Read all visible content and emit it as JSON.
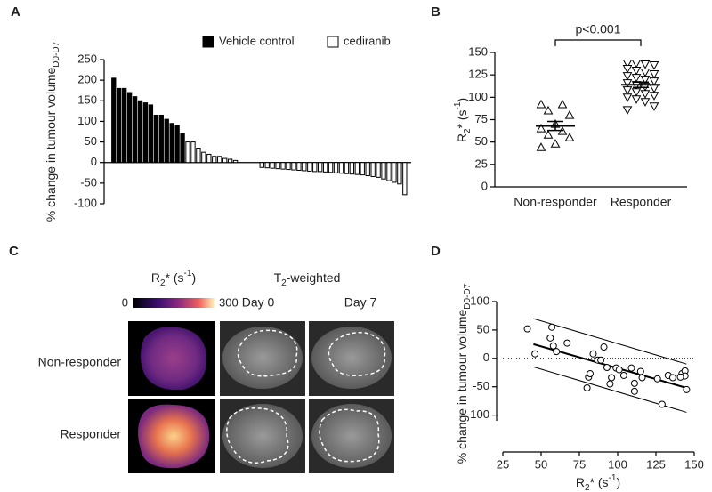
{
  "chart_data": [
    {
      "type": "bar",
      "panel": "A",
      "ylabel": "% change in tumour volume",
      "ylabel_sub": "D0-D7",
      "categories": [
        null,
        null,
        null,
        null,
        null,
        null,
        null,
        null,
        null,
        null,
        null,
        null,
        null,
        null,
        null,
        null,
        null,
        null,
        null,
        null,
        null,
        null,
        null,
        null,
        null,
        null,
        null,
        null,
        null,
        null,
        null,
        null,
        null,
        null,
        null,
        null,
        null,
        null,
        null,
        null,
        null,
        null,
        null,
        null,
        null,
        null,
        null,
        null,
        null,
        null,
        null,
        null,
        null,
        null,
        null,
        null
      ],
      "series": [
        {
          "name": "Vehicle control",
          "color": "#000000",
          "values": [
            205,
            180,
            180,
            170,
            160,
            150,
            145,
            140,
            115,
            115,
            105,
            95,
            90,
            70,
            null,
            null,
            null,
            null,
            null,
            null,
            null,
            null,
            null,
            null,
            null,
            null,
            null,
            null,
            null,
            null,
            null,
            null,
            null,
            null,
            null,
            null,
            null,
            null,
            null,
            null,
            null,
            null,
            null,
            null,
            null,
            null,
            null,
            null,
            null,
            null,
            null,
            null,
            null,
            null,
            null,
            null
          ]
        },
        {
          "name": "cediranib",
          "color": "#ffffff",
          "values": [
            null,
            null,
            null,
            null,
            null,
            null,
            null,
            null,
            null,
            null,
            null,
            null,
            null,
            null,
            50,
            50,
            35,
            25,
            20,
            15,
            15,
            10,
            8,
            5,
            null,
            null,
            null,
            null,
            -12,
            -13,
            -14,
            -15,
            -16,
            -17,
            -18,
            -19,
            -20,
            -21,
            -22,
            -22,
            -23,
            -24,
            -25,
            -26,
            -27,
            -28,
            -29,
            -30,
            -32,
            -34,
            -36,
            -40,
            -44,
            -48,
            -52,
            -78
          ]
        }
      ],
      "ylim": [
        -100,
        250
      ],
      "yticks": [
        -100,
        -50,
        0,
        50,
        100,
        150,
        200,
        250
      ]
    },
    {
      "type": "strip",
      "panel": "B",
      "ylabel": [
        "R",
        "2",
        "* (s",
        "-1",
        ")"
      ],
      "categories": [
        "Non-responder",
        "Responder"
      ],
      "series": [
        {
          "marker": "triangle-up",
          "values": [
            92,
            92,
            85,
            80,
            70,
            65,
            62,
            58,
            55,
            48,
            44
          ]
        },
        {
          "marker": "triangle-down",
          "values": [
            138,
            138,
            137,
            136,
            132,
            130,
            128,
            126,
            124,
            122,
            120,
            118,
            116,
            114,
            112,
            110,
            108,
            106,
            104,
            102,
            100,
            98,
            95,
            90,
            86
          ]
        }
      ],
      "means": [
        68,
        114
      ],
      "sems": [
        5,
        3
      ],
      "annotation": "p<0.001",
      "ylim": [
        0,
        150
      ],
      "yticks": [
        0,
        25,
        50,
        75,
        100,
        125,
        150
      ]
    },
    {
      "type": "scatter",
      "panel": "D",
      "ylabel": "% change in tumour volume",
      "ylabel_sub": "D0-D7",
      "xlabel": [
        "R",
        "2",
        "* (s",
        "-1",
        ")"
      ],
      "x": [
        41,
        46,
        57,
        56,
        58,
        60,
        67,
        81,
        80,
        82,
        84,
        87,
        89,
        91,
        93,
        96,
        95,
        99,
        101,
        104,
        109,
        111,
        111,
        115,
        116,
        126,
        129,
        133,
        136,
        142,
        144,
        144,
        145,
        141
      ],
      "y": [
        52,
        8,
        55,
        36,
        22,
        12,
        27,
        -33,
        -52,
        -27,
        8,
        -3,
        -3,
        20,
        -16,
        -34,
        -45,
        -17,
        -20,
        -30,
        -17,
        -44,
        -58,
        -23,
        -34,
        -36,
        -81,
        -30,
        -34,
        -27,
        -22,
        -31,
        -55,
        -33
      ],
      "lines": [
        {
          "x": [
            45,
            145
          ],
          "y": [
            25,
            -52
          ]
        },
        {
          "x": [
            45,
            145
          ],
          "y": [
            70,
            -10
          ]
        },
        {
          "x": [
            45,
            145
          ],
          "y": [
            -15,
            -95
          ]
        }
      ],
      "zero_line": true,
      "xlim": [
        25,
        150
      ],
      "xticks": [
        25,
        50,
        75,
        100,
        125,
        150
      ],
      "ylim": [
        -110,
        100
      ],
      "yticks": [
        -100,
        -50,
        0,
        50,
        100
      ]
    }
  ],
  "panel_c": {
    "label": "C",
    "map_title": [
      "R",
      "2",
      "* (s",
      "-1",
      ")"
    ],
    "colorbar_ticks": [
      0,
      300
    ],
    "t2_title": [
      "T",
      "2",
      "-weighted"
    ],
    "columns": [
      "Day 0",
      "Day 7"
    ],
    "rows": [
      "Non-responder",
      "Responder"
    ]
  }
}
